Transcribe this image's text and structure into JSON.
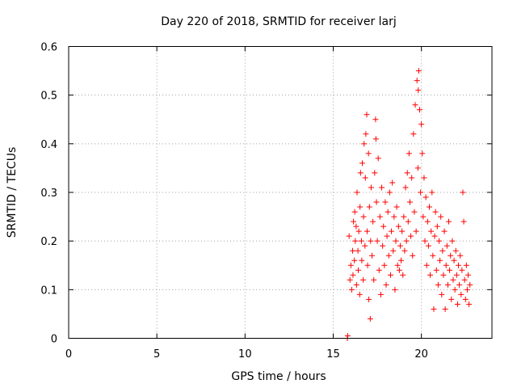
{
  "chart_data": {
    "type": "scatter",
    "title": "Day 220 of 2018, SRMTID for receiver larj",
    "xlabel": "GPS time / hours",
    "ylabel": "SRMTID / TECUs",
    "xlim": [
      0,
      24
    ],
    "ylim": [
      0,
      0.6
    ],
    "x_ticks": [
      0,
      5,
      10,
      15,
      20
    ],
    "y_ticks": [
      0,
      0.1,
      0.2,
      0.3,
      0.4,
      0.5,
      0.6
    ],
    "x_tick_labels": [
      "0",
      "5",
      "10",
      "15",
      "20"
    ],
    "y_tick_labels": [
      "0",
      "0.1",
      "0.2",
      "0.3",
      "0.4",
      "0.5",
      "0.6"
    ],
    "grid": true,
    "marker": "+",
    "series_color": "#ff0000",
    "series": [
      {
        "name": "SRMTID",
        "points": [
          [
            15.8,
            0.0
          ],
          [
            15.82,
            0.005
          ],
          [
            15.9,
            0.21
          ],
          [
            15.95,
            0.12
          ],
          [
            16.0,
            0.15
          ],
          [
            16.05,
            0.1
          ],
          [
            16.1,
            0.18
          ],
          [
            16.12,
            0.13
          ],
          [
            16.15,
            0.24
          ],
          [
            16.2,
            0.16
          ],
          [
            16.22,
            0.26
          ],
          [
            16.25,
            0.2
          ],
          [
            16.3,
            0.23
          ],
          [
            16.32,
            0.11
          ],
          [
            16.35,
            0.3
          ],
          [
            16.4,
            0.18
          ],
          [
            16.42,
            0.14
          ],
          [
            16.45,
            0.22
          ],
          [
            16.5,
            0.09
          ],
          [
            16.52,
            0.27
          ],
          [
            16.55,
            0.34
          ],
          [
            16.6,
            0.2
          ],
          [
            16.62,
            0.16
          ],
          [
            16.65,
            0.36
          ],
          [
            16.7,
            0.12
          ],
          [
            16.72,
            0.25
          ],
          [
            16.75,
            0.4
          ],
          [
            16.8,
            0.19
          ],
          [
            16.82,
            0.33
          ],
          [
            16.85,
            0.42
          ],
          [
            16.9,
            0.46
          ],
          [
            16.92,
            0.22
          ],
          [
            16.95,
            0.15
          ],
          [
            17.0,
            0.38
          ],
          [
            17.02,
            0.08
          ],
          [
            17.05,
            0.27
          ],
          [
            17.1,
            0.04
          ],
          [
            17.12,
            0.2
          ],
          [
            17.15,
            0.31
          ],
          [
            17.2,
            0.17
          ],
          [
            17.25,
            0.24
          ],
          [
            17.3,
            0.12
          ],
          [
            17.35,
            0.34
          ],
          [
            17.4,
            0.45
          ],
          [
            17.42,
            0.41
          ],
          [
            17.45,
            0.28
          ],
          [
            17.5,
            0.2
          ],
          [
            17.55,
            0.37
          ],
          [
            17.6,
            0.14
          ],
          [
            17.65,
            0.25
          ],
          [
            17.7,
            0.09
          ],
          [
            17.75,
            0.31
          ],
          [
            17.8,
            0.19
          ],
          [
            17.85,
            0.23
          ],
          [
            17.9,
            0.15
          ],
          [
            17.95,
            0.28
          ],
          [
            18.0,
            0.11
          ],
          [
            18.05,
            0.21
          ],
          [
            18.1,
            0.26
          ],
          [
            18.15,
            0.17
          ],
          [
            18.2,
            0.3
          ],
          [
            18.25,
            0.13
          ],
          [
            18.3,
            0.22
          ],
          [
            18.35,
            0.32
          ],
          [
            18.4,
            0.18
          ],
          [
            18.45,
            0.25
          ],
          [
            18.5,
            0.1
          ],
          [
            18.55,
            0.2
          ],
          [
            18.6,
            0.27
          ],
          [
            18.65,
            0.15
          ],
          [
            18.7,
            0.23
          ],
          [
            18.75,
            0.14
          ],
          [
            18.8,
            0.19
          ],
          [
            18.85,
            0.16
          ],
          [
            18.9,
            0.22
          ],
          [
            18.95,
            0.13
          ],
          [
            19.0,
            0.25
          ],
          [
            19.05,
            0.18
          ],
          [
            19.1,
            0.31
          ],
          [
            19.15,
            0.2
          ],
          [
            19.2,
            0.34
          ],
          [
            19.25,
            0.24
          ],
          [
            19.3,
            0.38
          ],
          [
            19.35,
            0.28
          ],
          [
            19.4,
            0.21
          ],
          [
            19.45,
            0.33
          ],
          [
            19.5,
            0.17
          ],
          [
            19.55,
            0.42
          ],
          [
            19.6,
            0.26
          ],
          [
            19.65,
            0.48
          ],
          [
            19.7,
            0.22
          ],
          [
            19.75,
            0.53
          ],
          [
            19.8,
            0.35
          ],
          [
            19.82,
            0.51
          ],
          [
            19.85,
            0.55
          ],
          [
            19.9,
            0.47
          ],
          [
            19.95,
            0.3
          ],
          [
            20.0,
            0.44
          ],
          [
            20.05,
            0.38
          ],
          [
            20.1,
            0.25
          ],
          [
            20.15,
            0.33
          ],
          [
            20.2,
            0.2
          ],
          [
            20.25,
            0.29
          ],
          [
            20.3,
            0.15
          ],
          [
            20.35,
            0.24
          ],
          [
            20.4,
            0.19
          ],
          [
            20.45,
            0.27
          ],
          [
            20.5,
            0.13
          ],
          [
            20.55,
            0.22
          ],
          [
            20.6,
            0.3
          ],
          [
            20.65,
            0.17
          ],
          [
            20.7,
            0.06
          ],
          [
            20.75,
            0.21
          ],
          [
            20.8,
            0.26
          ],
          [
            20.85,
            0.14
          ],
          [
            20.9,
            0.23
          ],
          [
            20.95,
            0.11
          ],
          [
            21.0,
            0.2
          ],
          [
            21.05,
            0.16
          ],
          [
            21.1,
            0.25
          ],
          [
            21.15,
            0.09
          ],
          [
            21.2,
            0.18
          ],
          [
            21.25,
            0.13
          ],
          [
            21.3,
            0.22
          ],
          [
            21.35,
            0.06
          ],
          [
            21.4,
            0.15
          ],
          [
            21.45,
            0.19
          ],
          [
            21.5,
            0.11
          ],
          [
            21.55,
            0.24
          ],
          [
            21.6,
            0.14
          ],
          [
            21.65,
            0.17
          ],
          [
            21.7,
            0.08
          ],
          [
            21.75,
            0.2
          ],
          [
            21.8,
            0.12
          ],
          [
            21.85,
            0.16
          ],
          [
            21.9,
            0.1
          ],
          [
            21.95,
            0.18
          ],
          [
            22.0,
            0.13
          ],
          [
            22.05,
            0.07
          ],
          [
            22.1,
            0.15
          ],
          [
            22.15,
            0.11
          ],
          [
            22.2,
            0.17
          ],
          [
            22.25,
            0.09
          ],
          [
            22.3,
            0.14
          ],
          [
            22.35,
            0.3
          ],
          [
            22.4,
            0.24
          ],
          [
            22.45,
            0.12
          ],
          [
            22.5,
            0.08
          ],
          [
            22.55,
            0.15
          ],
          [
            22.6,
            0.1
          ],
          [
            22.65,
            0.13
          ],
          [
            22.7,
            0.07
          ],
          [
            22.75,
            0.11
          ]
        ]
      }
    ]
  }
}
